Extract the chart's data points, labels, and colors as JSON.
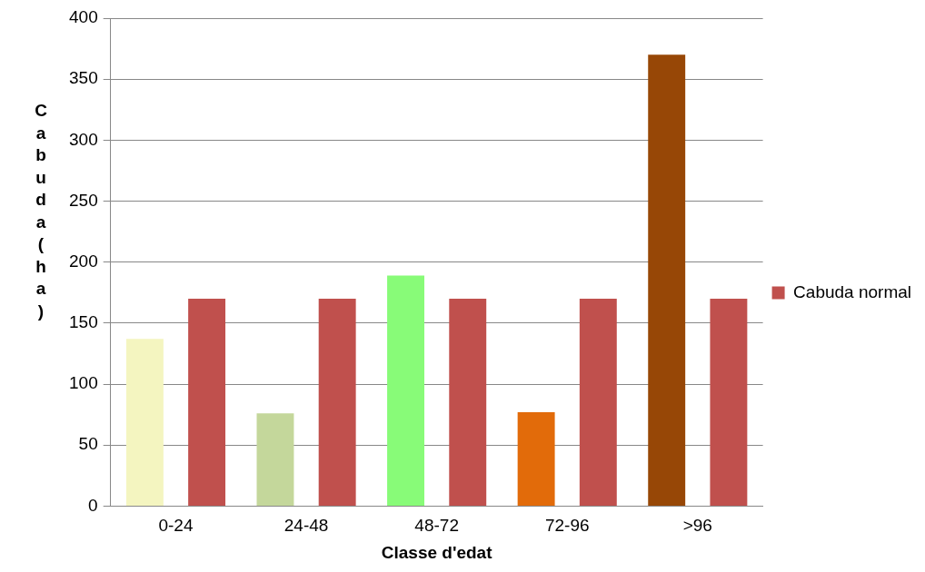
{
  "chart_data": {
    "type": "bar",
    "xlabel": "Classe d'edat",
    "ylabel": "Cabuda (ha)",
    "categories": [
      "0-24",
      "24-48",
      "48-72",
      "72-96",
      ">96"
    ],
    "series": [
      {
        "colors": [
          "#f4f5c0",
          "#c4d79b",
          "#88fb78",
          "#e26b0a",
          "#974706"
        ],
        "values": [
          137,
          76,
          189,
          77,
          370
        ]
      },
      {
        "name": "Cabuda normal",
        "color": "#c0504d",
        "values": [
          170,
          170,
          170,
          170,
          170
        ]
      }
    ],
    "ylim": [
      0,
      400
    ],
    "yticks": [
      0,
      50,
      100,
      150,
      200,
      250,
      300,
      350,
      400
    ],
    "grid": "y",
    "legend": "right"
  }
}
